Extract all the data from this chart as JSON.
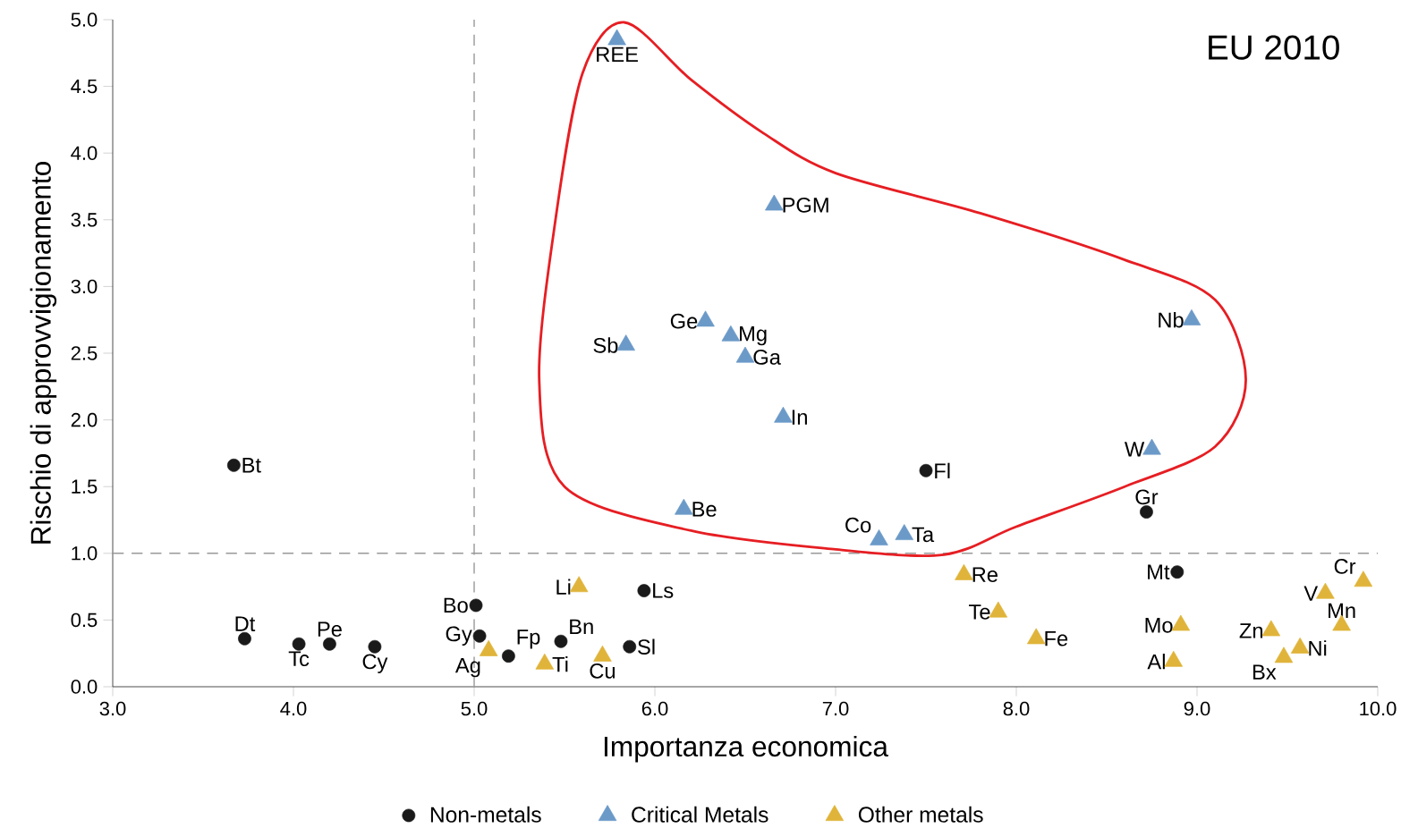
{
  "chart_data": {
    "type": "scatter",
    "xlabel": "Importanza economica",
    "ylabel": "Rischio di approvvigionamento",
    "xlim": [
      3,
      10
    ],
    "ylim": [
      0,
      5
    ],
    "xticks": [
      {
        "value": 3,
        "label": "3.0"
      },
      {
        "value": 4,
        "label": "4.0"
      },
      {
        "value": 5,
        "label": "5.0"
      },
      {
        "value": 6,
        "label": "6.0"
      },
      {
        "value": 7,
        "label": "7.0"
      },
      {
        "value": 8,
        "label": "8.0"
      },
      {
        "value": 9,
        "label": "9.0"
      },
      {
        "value": 10,
        "label": "10.0"
      }
    ],
    "yticks": [
      {
        "value": 0,
        "label": "0.0"
      },
      {
        "value": 0.5,
        "label": "0.5"
      },
      {
        "value": 1,
        "label": "1.0"
      },
      {
        "value": 1.5,
        "label": "1.5"
      },
      {
        "value": 2,
        "label": "2.0"
      },
      {
        "value": 2.5,
        "label": "2.5"
      },
      {
        "value": 3,
        "label": "3.0"
      },
      {
        "value": 3.5,
        "label": "3.5"
      },
      {
        "value": 4,
        "label": "4.0"
      },
      {
        "value": 4.5,
        "label": "4.5"
      },
      {
        "value": 5,
        "label": "5.0"
      }
    ],
    "grid": false,
    "legend": "bottom",
    "ref_lines": [
      {
        "axis": "x",
        "value": 5,
        "color": "#999999",
        "line_style": "dashed"
      },
      {
        "axis": "y",
        "value": 1,
        "color": "#999999",
        "line_style": "dashed"
      }
    ],
    "series": [
      {
        "name": "Non-metals",
        "color": "#1a1a1a",
        "marker": "circle",
        "x": [
          3.67,
          3.73,
          4.03,
          4.2,
          4.45,
          5.01,
          5.03,
          5.19,
          5.48,
          5.86,
          5.94,
          7.5,
          8.72,
          8.89
        ],
        "values": [
          1.66,
          0.36,
          0.32,
          0.32,
          0.3,
          0.61,
          0.38,
          0.23,
          0.34,
          0.3,
          0.72,
          1.62,
          1.31,
          0.86
        ]
      },
      {
        "name": "Critical Metals",
        "color": "#6b9ac8",
        "marker": "triangle",
        "x": [
          5.79,
          6.66,
          6.28,
          6.42,
          5.84,
          6.5,
          6.71,
          6.16,
          7.24,
          7.38,
          8.75,
          8.97
        ],
        "values": [
          4.85,
          3.61,
          2.74,
          2.63,
          2.56,
          2.47,
          2.02,
          1.33,
          1.1,
          1.14,
          1.78,
          2.75
        ]
      },
      {
        "name": "Other metals",
        "color": "#e0b43a",
        "marker": "triangle",
        "x": [
          5.58,
          5.08,
          5.39,
          5.71,
          7.71,
          7.9,
          8.11,
          8.91,
          8.87,
          9.41,
          9.48,
          9.57,
          9.71,
          9.8,
          9.92
        ],
        "values": [
          0.75,
          0.27,
          0.17,
          0.23,
          0.84,
          0.56,
          0.36,
          0.46,
          0.19,
          0.42,
          0.22,
          0.29,
          0.7,
          0.46,
          0.79
        ]
      }
    ],
    "annotations": [
      "EU 2010",
      {
        "text": "Bt",
        "x": 3.67,
        "y": 1.66
      },
      {
        "text": "Dt",
        "x": 3.73,
        "y": 0.36
      },
      {
        "text": "Tc",
        "x": 4.03,
        "y": 0.32
      },
      {
        "text": "Pe",
        "x": 4.2,
        "y": 0.32
      },
      {
        "text": "Cy",
        "x": 4.45,
        "y": 0.3
      },
      {
        "text": "Bo",
        "x": 5.01,
        "y": 0.61
      },
      {
        "text": "Gy",
        "x": 5.03,
        "y": 0.38
      },
      {
        "text": "Fp",
        "x": 5.19,
        "y": 0.23
      },
      {
        "text": "Bn",
        "x": 5.48,
        "y": 0.34
      },
      {
        "text": "Sl",
        "x": 5.86,
        "y": 0.3
      },
      {
        "text": "Ls",
        "x": 5.94,
        "y": 0.72
      },
      {
        "text": "Fl",
        "x": 7.5,
        "y": 1.62
      },
      {
        "text": "Gr",
        "x": 8.72,
        "y": 1.31
      },
      {
        "text": "Mt",
        "x": 8.89,
        "y": 0.86
      },
      {
        "text": "REE",
        "x": 5.79,
        "y": 4.85
      },
      {
        "text": "PGM",
        "x": 6.66,
        "y": 3.61
      },
      {
        "text": "Ge",
        "x": 6.28,
        "y": 2.74
      },
      {
        "text": "Mg",
        "x": 6.42,
        "y": 2.63
      },
      {
        "text": "Sb",
        "x": 5.84,
        "y": 2.56
      },
      {
        "text": "Ga",
        "x": 6.5,
        "y": 2.47
      },
      {
        "text": "In",
        "x": 6.71,
        "y": 2.02
      },
      {
        "text": "Be",
        "x": 6.16,
        "y": 1.33
      },
      {
        "text": "Co",
        "x": 7.24,
        "y": 1.1
      },
      {
        "text": "Ta",
        "x": 7.38,
        "y": 1.14
      },
      {
        "text": "W",
        "x": 8.75,
        "y": 1.78
      },
      {
        "text": "Nb",
        "x": 8.97,
        "y": 2.75
      },
      {
        "text": "Li",
        "x": 5.58,
        "y": 0.75
      },
      {
        "text": "Ag",
        "x": 5.08,
        "y": 0.27
      },
      {
        "text": "Ti",
        "x": 5.39,
        "y": 0.17
      },
      {
        "text": "Cu",
        "x": 5.71,
        "y": 0.23
      },
      {
        "text": "Re",
        "x": 7.71,
        "y": 0.84
      },
      {
        "text": "Te",
        "x": 7.9,
        "y": 0.56
      },
      {
        "text": "Fe",
        "x": 8.11,
        "y": 0.36
      },
      {
        "text": "Mo",
        "x": 8.91,
        "y": 0.46
      },
      {
        "text": "Al",
        "x": 8.87,
        "y": 0.19
      },
      {
        "text": "Zn",
        "x": 9.41,
        "y": 0.42
      },
      {
        "text": "Bx",
        "x": 9.48,
        "y": 0.22
      },
      {
        "text": "Ni",
        "x": 9.57,
        "y": 0.29
      },
      {
        "text": "V",
        "x": 9.71,
        "y": 0.7
      },
      {
        "text": "Mn",
        "x": 9.8,
        "y": 0.46
      },
      {
        "text": "Cr",
        "x": 9.92,
        "y": 0.79
      }
    ]
  }
}
